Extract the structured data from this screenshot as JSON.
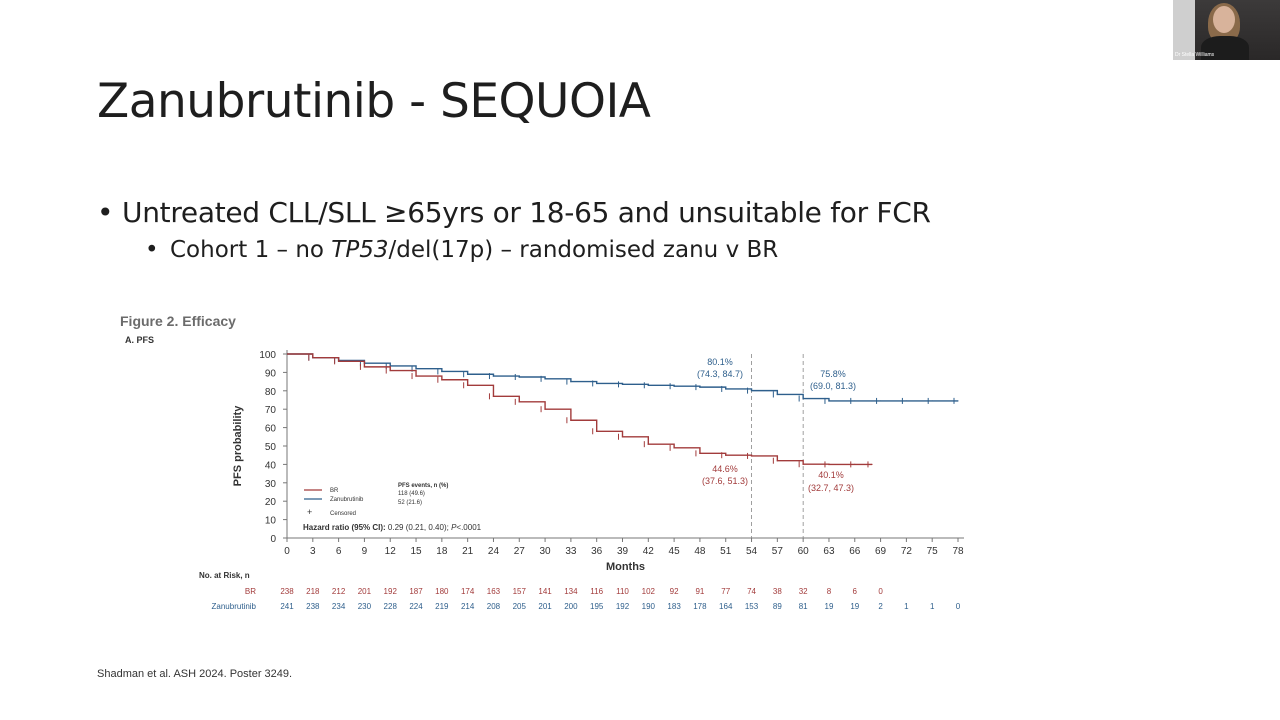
{
  "slide": {
    "title": "Zanubrutinib - SEQUOIA",
    "bullet1": "Untreated CLL/SLL ≥65yrs or 18-65 and unsuitable for FCR",
    "bullet2_pre": "Cohort 1 – no ",
    "bullet2_italic": "TP53",
    "bullet2_post": "/del(17p) – randomised zanu v BR",
    "citation": "Shadman et al. ASH 2024. Poster 3249."
  },
  "webcam": {
    "name": "Dr Stella Williams"
  },
  "figure": {
    "caption": "Figure 2. Efficacy",
    "panel": "A. PFS",
    "legend_header": "PFS events, n (%)",
    "legend": [
      {
        "name": "BR",
        "events": "118 (49.6)",
        "color": "#a23b3b"
      },
      {
        "name": "Zanubrutinib",
        "events": "52 (21.6)",
        "color": "#2e5f8c"
      }
    ],
    "censored_label": "Censored",
    "hazard_ratio_label": "Hazard ratio (95% CI):",
    "hazard_ratio_value": "0.29 (0.21, 0.40);",
    "p_label": "P",
    "p_value": "<.0001",
    "annotations": {
      "zanu_54": {
        "pct": "80.1%",
        "ci": "(74.3, 84.7)"
      },
      "zanu_60": {
        "pct": "75.8%",
        "ci": "(69.0, 81.3)"
      },
      "br_54": {
        "pct": "44.6%",
        "ci": "(37.6, 51.3)"
      },
      "br_60": {
        "pct": "40.1%",
        "ci": "(32.7, 47.3)"
      }
    },
    "risk_table": {
      "header": "No. at Risk, n",
      "rows": [
        {
          "label": "BR",
          "color": "#a23b3b",
          "values": [
            "238",
            "218",
            "212",
            "201",
            "192",
            "187",
            "180",
            "174",
            "163",
            "157",
            "141",
            "134",
            "116",
            "110",
            "102",
            "92",
            "91",
            "77",
            "74",
            "38",
            "32",
            "8",
            "6",
            "0"
          ]
        },
        {
          "label": "Zanubrutinib",
          "color": "#2e5f8c",
          "values": [
            "241",
            "238",
            "234",
            "230",
            "228",
            "224",
            "219",
            "214",
            "208",
            "205",
            "201",
            "200",
            "195",
            "192",
            "190",
            "183",
            "178",
            "164",
            "153",
            "89",
            "81",
            "19",
            "19",
            "2",
            "1",
            "1",
            "0"
          ]
        }
      ]
    }
  },
  "chart_data": {
    "type": "line",
    "title": "",
    "xlabel": "Months",
    "ylabel": "PFS probability",
    "xlim": [
      0,
      78
    ],
    "ylim": [
      0,
      100
    ],
    "x_ticks": [
      0,
      3,
      6,
      9,
      12,
      15,
      18,
      21,
      24,
      27,
      30,
      33,
      36,
      39,
      42,
      45,
      48,
      51,
      54,
      57,
      60,
      63,
      66,
      69,
      72,
      75,
      78
    ],
    "y_ticks": [
      0,
      10,
      20,
      30,
      40,
      50,
      60,
      70,
      80,
      90,
      100
    ],
    "reference_lines_x": [
      54,
      60
    ],
    "series": [
      {
        "name": "Zanubrutinib",
        "color": "#2e5f8c",
        "x": [
          0,
          3,
          6,
          9,
          12,
          15,
          18,
          21,
          24,
          27,
          30,
          33,
          36,
          39,
          42,
          45,
          48,
          51,
          54,
          57,
          60,
          63,
          66,
          69,
          72,
          75,
          78
        ],
        "y": [
          100,
          98,
          96.5,
          95,
          93.5,
          92,
          90.5,
          89,
          88,
          87.5,
          86.5,
          85,
          84,
          83.5,
          83,
          82.5,
          82,
          81,
          80.1,
          78,
          75.8,
          74.5,
          74.5,
          74.5,
          74.5,
          74.5,
          74.5
        ],
        "end_x": 78
      },
      {
        "name": "BR",
        "color": "#a23b3b",
        "x": [
          0,
          3,
          6,
          9,
          12,
          15,
          18,
          21,
          24,
          27,
          30,
          33,
          36,
          39,
          42,
          45,
          48,
          51,
          54,
          57,
          60,
          63,
          66,
          68
        ],
        "y": [
          100,
          98,
          96,
          93,
          91,
          88,
          86,
          83,
          77,
          74,
          70,
          64,
          58,
          55,
          51,
          49,
          46,
          45,
          44.6,
          42,
          40.1,
          40,
          40,
          40
        ],
        "end_x": 68
      }
    ]
  }
}
